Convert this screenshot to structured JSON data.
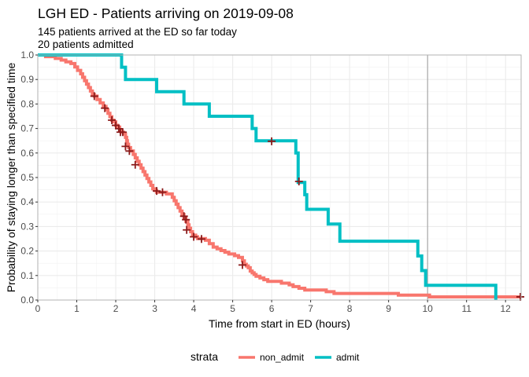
{
  "chart_data": {
    "type": "line",
    "subtype": "kaplan-meier step curve",
    "title": "LGH ED - Patients arriving on 2019-09-08",
    "subtitle_lines": [
      "145 patients arrived at the ED so far today",
      "20 patients admitted"
    ],
    "xlabel": "Time from start in ED (hours)",
    "ylabel": "Probability of staying longer than specified time",
    "xlim": [
      0,
      12.4
    ],
    "ylim": [
      0,
      1.0
    ],
    "x_ticks": [
      0,
      1,
      2,
      3,
      4,
      5,
      6,
      7,
      8,
      9,
      10,
      11,
      12
    ],
    "y_ticks": [
      0.0,
      0.1,
      0.2,
      0.3,
      0.4,
      0.5,
      0.6,
      0.7,
      0.8,
      0.9,
      1.0
    ],
    "y_tick_labels": [
      "0.0",
      "0.1",
      "0.2",
      "0.3",
      "0.4",
      "0.5",
      "0.6",
      "0.7",
      "0.8",
      "0.9",
      "1.0"
    ],
    "grid": true,
    "reference_line_x": 10,
    "legend": {
      "title": "strata",
      "position": "bottom"
    },
    "series": [
      {
        "name": "non_admit",
        "color": "#F8766D",
        "points": [
          [
            0,
            1.0
          ],
          [
            0.2,
            0.993
          ],
          [
            0.45,
            0.986
          ],
          [
            0.6,
            0.979
          ],
          [
            0.72,
            0.972
          ],
          [
            0.85,
            0.965
          ],
          [
            0.95,
            0.951
          ],
          [
            1.02,
            0.937
          ],
          [
            1.1,
            0.923
          ],
          [
            1.15,
            0.909
          ],
          [
            1.2,
            0.895
          ],
          [
            1.25,
            0.881
          ],
          [
            1.3,
            0.867
          ],
          [
            1.35,
            0.853
          ],
          [
            1.4,
            0.839
          ],
          [
            1.45,
            0.832
          ],
          [
            1.52,
            0.818
          ],
          [
            1.6,
            0.804
          ],
          [
            1.68,
            0.79
          ],
          [
            1.75,
            0.776
          ],
          [
            1.8,
            0.762
          ],
          [
            1.85,
            0.748
          ],
          [
            1.9,
            0.734
          ],
          [
            1.95,
            0.727
          ],
          [
            2.0,
            0.713
          ],
          [
            2.05,
            0.706
          ],
          [
            2.1,
            0.692
          ],
          [
            2.15,
            0.685
          ],
          [
            2.2,
            0.678
          ],
          [
            2.25,
            0.664
          ],
          [
            2.28,
            0.65
          ],
          [
            2.3,
            0.636
          ],
          [
            2.33,
            0.622
          ],
          [
            2.38,
            0.608
          ],
          [
            2.45,
            0.594
          ],
          [
            2.5,
            0.58
          ],
          [
            2.55,
            0.566
          ],
          [
            2.6,
            0.552
          ],
          [
            2.65,
            0.538
          ],
          [
            2.7,
            0.524
          ],
          [
            2.75,
            0.51
          ],
          [
            2.8,
            0.496
          ],
          [
            2.85,
            0.482
          ],
          [
            2.9,
            0.468
          ],
          [
            2.95,
            0.454
          ],
          [
            3.0,
            0.447
          ],
          [
            3.05,
            0.44
          ],
          [
            3.3,
            0.433
          ],
          [
            3.45,
            0.419
          ],
          [
            3.5,
            0.405
          ],
          [
            3.55,
            0.391
          ],
          [
            3.6,
            0.377
          ],
          [
            3.65,
            0.363
          ],
          [
            3.7,
            0.349
          ],
          [
            3.75,
            0.335
          ],
          [
            3.8,
            0.321
          ],
          [
            3.85,
            0.307
          ],
          [
            3.88,
            0.293
          ],
          [
            3.92,
            0.279
          ],
          [
            3.97,
            0.265
          ],
          [
            4.05,
            0.258
          ],
          [
            4.1,
            0.251
          ],
          [
            4.3,
            0.244
          ],
          [
            4.4,
            0.23
          ],
          [
            4.5,
            0.216
          ],
          [
            4.6,
            0.209
          ],
          [
            4.7,
            0.202
          ],
          [
            4.8,
            0.195
          ],
          [
            4.9,
            0.188
          ],
          [
            5.05,
            0.181
          ],
          [
            5.15,
            0.174
          ],
          [
            5.25,
            0.16
          ],
          [
            5.3,
            0.146
          ],
          [
            5.35,
            0.139
          ],
          [
            5.4,
            0.132
          ],
          [
            5.45,
            0.118
          ],
          [
            5.5,
            0.111
          ],
          [
            5.55,
            0.104
          ],
          [
            5.6,
            0.097
          ],
          [
            5.7,
            0.09
          ],
          [
            5.8,
            0.083
          ],
          [
            5.9,
            0.076
          ],
          [
            6.25,
            0.069
          ],
          [
            6.45,
            0.062
          ],
          [
            6.55,
            0.055
          ],
          [
            6.7,
            0.048
          ],
          [
            6.85,
            0.041
          ],
          [
            7.4,
            0.034
          ],
          [
            7.6,
            0.027
          ],
          [
            9.25,
            0.02
          ],
          [
            10.05,
            0.013
          ],
          [
            12.4,
            0.013
          ]
        ],
        "censor_marks": [
          [
            1.45,
            0.832
          ],
          [
            1.72,
            0.783
          ],
          [
            1.9,
            0.734
          ],
          [
            2.0,
            0.713
          ],
          [
            2.08,
            0.699
          ],
          [
            2.12,
            0.685
          ],
          [
            2.18,
            0.685
          ],
          [
            2.25,
            0.627
          ],
          [
            2.35,
            0.608
          ],
          [
            2.5,
            0.552
          ],
          [
            3.05,
            0.445
          ],
          [
            3.2,
            0.44
          ],
          [
            3.75,
            0.342
          ],
          [
            3.8,
            0.328
          ],
          [
            3.82,
            0.286
          ],
          [
            4.0,
            0.258
          ],
          [
            4.2,
            0.249
          ],
          [
            5.25,
            0.143
          ],
          [
            6.0,
            0.648
          ],
          [
            6.7,
            0.484
          ],
          [
            12.38,
            0.013
          ]
        ]
      },
      {
        "name": "admit",
        "color": "#00BFC4",
        "points": [
          [
            0,
            1.0
          ],
          [
            2.15,
            1.0
          ],
          [
            2.15,
            0.95
          ],
          [
            2.25,
            0.95
          ],
          [
            2.25,
            0.9
          ],
          [
            3.05,
            0.9
          ],
          [
            3.05,
            0.85
          ],
          [
            3.75,
            0.85
          ],
          [
            3.75,
            0.8
          ],
          [
            4.4,
            0.8
          ],
          [
            4.4,
            0.75
          ],
          [
            5.5,
            0.75
          ],
          [
            5.5,
            0.7
          ],
          [
            5.6,
            0.7
          ],
          [
            5.6,
            0.65
          ],
          [
            6.62,
            0.65
          ],
          [
            6.62,
            0.6
          ],
          [
            6.68,
            0.6
          ],
          [
            6.68,
            0.48
          ],
          [
            6.85,
            0.48
          ],
          [
            6.85,
            0.43
          ],
          [
            6.9,
            0.43
          ],
          [
            6.9,
            0.37
          ],
          [
            7.45,
            0.37
          ],
          [
            7.45,
            0.31
          ],
          [
            7.75,
            0.31
          ],
          [
            7.75,
            0.24
          ],
          [
            9.75,
            0.24
          ],
          [
            9.75,
            0.18
          ],
          [
            9.85,
            0.18
          ],
          [
            9.85,
            0.12
          ],
          [
            9.95,
            0.12
          ],
          [
            9.95,
            0.06
          ],
          [
            11.75,
            0.06
          ],
          [
            11.75,
            0.0
          ]
        ]
      }
    ]
  }
}
